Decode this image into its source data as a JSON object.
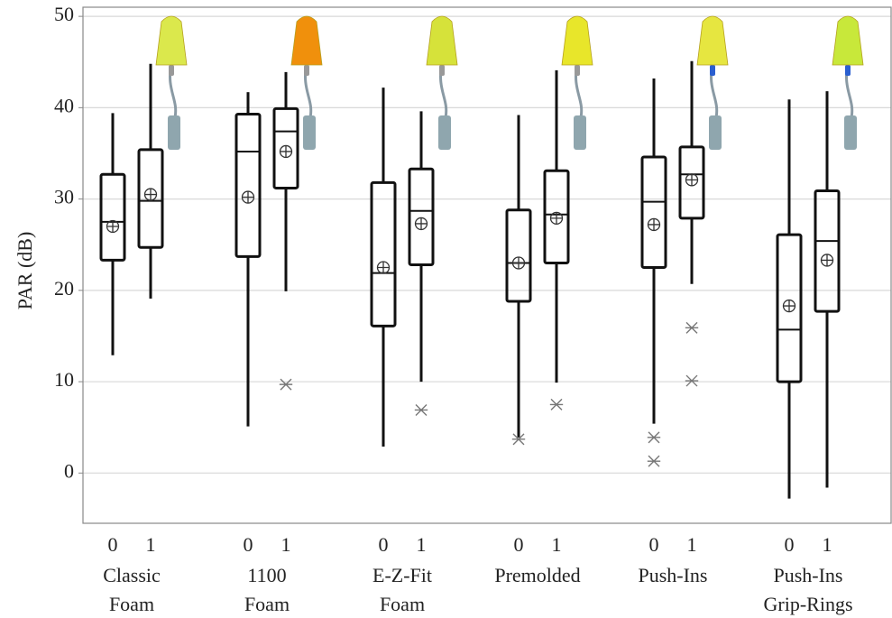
{
  "chart_data": {
    "type": "box",
    "ylabel": "PAR (dB)",
    "ylim": [
      -5.5,
      51
    ],
    "yticks": [
      0,
      10,
      20,
      30,
      40,
      50
    ],
    "grid": true,
    "groups": [
      {
        "name": [
          "Classic",
          "Foam"
        ],
        "boxes": [
          {
            "label": "0",
            "whisker_low": 12.9,
            "q1": 23.3,
            "median": 27.5,
            "q3": 32.7,
            "whisker_high": 39.4,
            "mean": 27.0,
            "outliers": []
          },
          {
            "label": "1",
            "whisker_low": 19.1,
            "q1": 24.7,
            "median": 29.8,
            "q3": 35.4,
            "whisker_high": 44.8,
            "mean": 30.5,
            "outliers": []
          }
        ]
      },
      {
        "name": [
          "1100",
          "Foam"
        ],
        "boxes": [
          {
            "label": "0",
            "whisker_low": 5.1,
            "q1": 23.7,
            "median": 35.2,
            "q3": 39.3,
            "whisker_high": 41.7,
            "mean": 30.2,
            "outliers": []
          },
          {
            "label": "1",
            "whisker_low": 19.9,
            "q1": 31.2,
            "median": 37.4,
            "q3": 39.9,
            "whisker_high": 43.9,
            "mean": 35.2,
            "outliers": [
              9.7
            ]
          }
        ]
      },
      {
        "name": [
          "E-Z-Fit",
          "Foam"
        ],
        "boxes": [
          {
            "label": "0",
            "whisker_low": 2.9,
            "q1": 16.1,
            "median": 21.9,
            "q3": 31.8,
            "whisker_high": 42.2,
            "mean": 22.5,
            "outliers": []
          },
          {
            "label": "1",
            "whisker_low": 10.0,
            "q1": 22.8,
            "median": 28.7,
            "q3": 33.3,
            "whisker_high": 39.6,
            "mean": 27.3,
            "outliers": [
              6.9
            ]
          }
        ]
      },
      {
        "name": [
          "Premolded"
        ],
        "boxes": [
          {
            "label": "0",
            "whisker_low": 3.9,
            "q1": 18.8,
            "median": 23.0,
            "q3": 28.8,
            "whisker_high": 39.2,
            "mean": 23.0,
            "outliers": [
              3.7
            ]
          },
          {
            "label": "1",
            "whisker_low": 9.9,
            "q1": 23.0,
            "median": 28.3,
            "q3": 33.1,
            "whisker_high": 44.1,
            "mean": 27.9,
            "outliers": [
              7.5
            ]
          }
        ]
      },
      {
        "name": [
          "Push-Ins"
        ],
        "boxes": [
          {
            "label": "0",
            "whisker_low": 5.4,
            "q1": 22.5,
            "median": 29.7,
            "q3": 34.6,
            "whisker_high": 43.2,
            "mean": 27.2,
            "outliers": [
              3.9,
              1.3
            ]
          },
          {
            "label": "1",
            "whisker_low": 20.7,
            "q1": 27.9,
            "median": 32.7,
            "q3": 35.7,
            "whisker_high": 45.1,
            "mean": 32.1,
            "outliers": [
              15.9,
              10.1
            ]
          }
        ]
      },
      {
        "name": [
          "Push-Ins",
          "Grip-Rings"
        ],
        "boxes": [
          {
            "label": "0",
            "whisker_low": -2.8,
            "q1": 10.0,
            "median": 15.7,
            "q3": 26.1,
            "whisker_high": 40.9,
            "mean": 18.3,
            "outliers": []
          },
          {
            "label": "1",
            "whisker_low": -1.6,
            "q1": 17.7,
            "median": 25.4,
            "q3": 30.9,
            "whisker_high": 41.8,
            "mean": 23.3,
            "outliers": []
          }
        ]
      }
    ]
  }
}
